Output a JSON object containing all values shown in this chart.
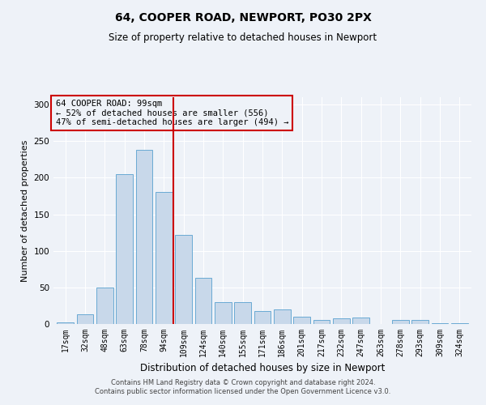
{
  "title": "64, COOPER ROAD, NEWPORT, PO30 2PX",
  "subtitle": "Size of property relative to detached houses in Newport",
  "xlabel": "Distribution of detached houses by size in Newport",
  "ylabel": "Number of detached properties",
  "footer_line1": "Contains HM Land Registry data © Crown copyright and database right 2024.",
  "footer_line2": "Contains public sector information licensed under the Open Government Licence v3.0.",
  "annotation_title": "64 COOPER ROAD: 99sqm",
  "annotation_line1": "← 52% of detached houses are smaller (556)",
  "annotation_line2": "47% of semi-detached houses are larger (494) →",
  "bar_color": "#c8d8ea",
  "bar_edge_color": "#6aaad4",
  "reference_line_color": "#cc0000",
  "annotation_box_color": "#cc0000",
  "annotation_bg": "#eef2f8",
  "categories": [
    "17sqm",
    "32sqm",
    "48sqm",
    "63sqm",
    "78sqm",
    "94sqm",
    "109sqm",
    "124sqm",
    "140sqm",
    "155sqm",
    "171sqm",
    "186sqm",
    "201sqm",
    "217sqm",
    "232sqm",
    "247sqm",
    "263sqm",
    "278sqm",
    "293sqm",
    "309sqm",
    "324sqm"
  ],
  "values": [
    2,
    13,
    50,
    205,
    238,
    180,
    122,
    63,
    30,
    30,
    18,
    20,
    10,
    5,
    8,
    9,
    0,
    5,
    6,
    1,
    1
  ],
  "reference_line_x": 5.5,
  "ylim": [
    0,
    310
  ],
  "yticks": [
    0,
    50,
    100,
    150,
    200,
    250,
    300
  ],
  "background_color": "#eef2f8",
  "grid_color": "#ffffff",
  "title_fontsize": 10,
  "subtitle_fontsize": 8.5,
  "ylabel_fontsize": 8,
  "xlabel_fontsize": 8.5,
  "tick_fontsize": 7,
  "footer_fontsize": 6,
  "annot_fontsize": 7.5
}
